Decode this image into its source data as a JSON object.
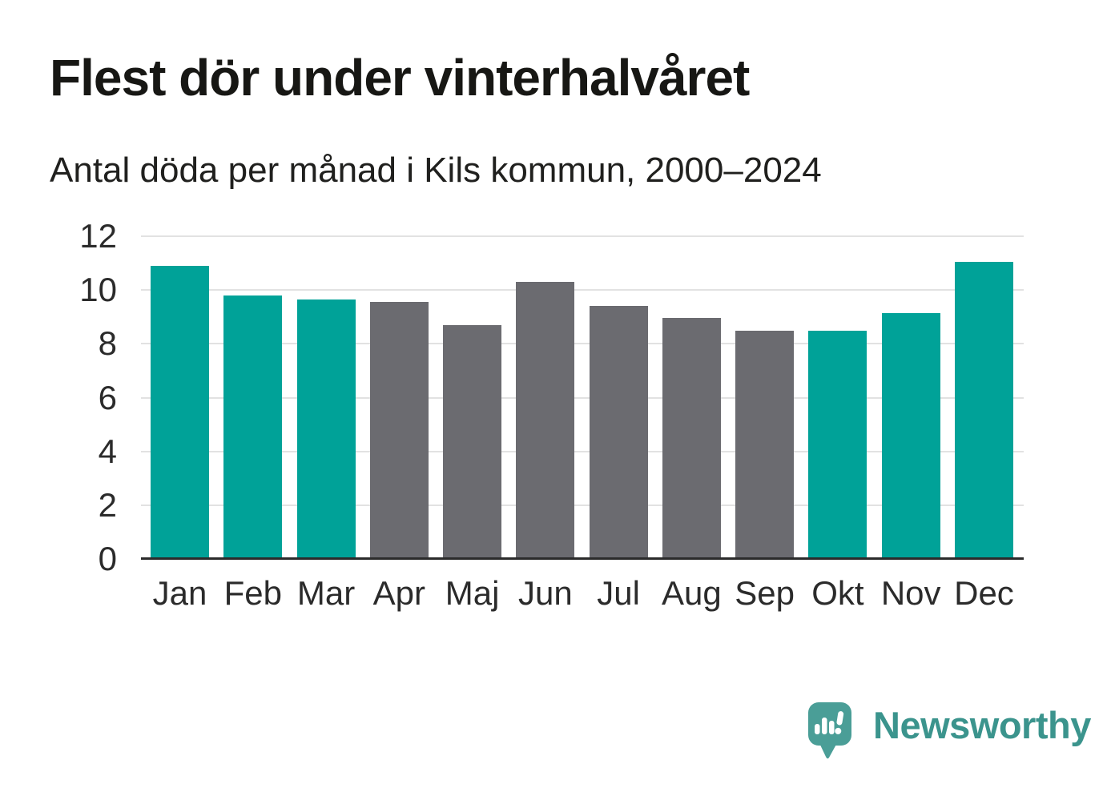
{
  "header": {
    "title": "Flest dör under vinterhalvåret",
    "subtitle": "Antal döda per månad i Kils kommun, 2000–2024"
  },
  "chart_data": {
    "type": "bar",
    "title": "Flest dör under vinterhalvåret",
    "subtitle": "Antal döda per månad i Kils kommun, 2000–2024",
    "categories": [
      "Jan",
      "Feb",
      "Mar",
      "Apr",
      "Maj",
      "Jun",
      "Jul",
      "Aug",
      "Sep",
      "Okt",
      "Nov",
      "Dec"
    ],
    "values": [
      10.9,
      9.8,
      9.65,
      9.55,
      8.7,
      10.3,
      9.4,
      8.95,
      8.5,
      8.5,
      9.15,
      11.05
    ],
    "bar_colors": [
      "#00a298",
      "#00a298",
      "#00a298",
      "#6b6b70",
      "#6b6b70",
      "#6b6b70",
      "#6b6b70",
      "#6b6b70",
      "#6b6b70",
      "#00a298",
      "#00a298",
      "#00a298"
    ],
    "xlabel": "",
    "ylabel": "",
    "ylim": [
      0,
      12
    ],
    "yticks": [
      0,
      2,
      4,
      6,
      8,
      10,
      12
    ],
    "grid": true,
    "legend": "none"
  },
  "colors": {
    "highlight": "#00a298",
    "muted": "#6b6b70",
    "gridline": "#e2e2e2",
    "axis_line": "#2b2b2b",
    "background": "#ffffff",
    "logo_bubble": "#4a9e97",
    "logo_text": "#3b948d"
  },
  "footer": {
    "brand": "Newsworthy",
    "logo_icon": "bar-chart-speech-bubble-icon"
  }
}
